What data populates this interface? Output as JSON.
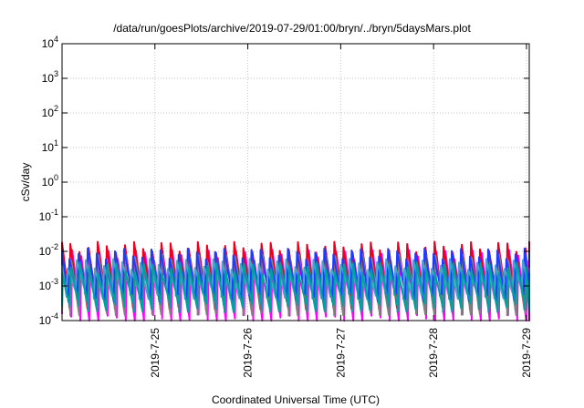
{
  "chart_data": {
    "type": "line",
    "title": "/data/run/goesPlots/archive/2019-07-29/01:00/bryn/../bryn/5daysMars.plot",
    "xlabel": "Coordinated Universal Time (UTC)",
    "ylabel": "cSv/day",
    "yscale": "log",
    "ylim": [
      0.0001,
      10000
    ],
    "xlim": [
      0,
      5.03
    ],
    "grid": true,
    "y_ticks": [
      {
        "base": "10",
        "exp": "-4"
      },
      {
        "base": "10",
        "exp": "-3"
      },
      {
        "base": "10",
        "exp": "-2"
      },
      {
        "base": "10",
        "exp": "-1"
      },
      {
        "base": "10",
        "exp": "0"
      },
      {
        "base": "10",
        "exp": "1"
      },
      {
        "base": "10",
        "exp": "2"
      },
      {
        "base": "10",
        "exp": "3"
      },
      {
        "base": "10",
        "exp": "4"
      }
    ],
    "x_ticks": [
      {
        "label": "2019-7-25",
        "x": 1.0
      },
      {
        "label": "2019-7-26",
        "x": 2.0
      },
      {
        "label": "2019-7-27",
        "x": 3.0
      },
      {
        "label": "2019-7-28",
        "x": 4.0
      },
      {
        "label": "2019-7-29",
        "x": 5.0
      }
    ],
    "sawtooth": {
      "period_days": 0.098,
      "series": [
        {
          "color": "#ff00ff",
          "peak": 0.008,
          "trough": 0.00012,
          "phase": 0.0
        },
        {
          "color": "#e8001c",
          "peak": 0.014,
          "trough": 0.0003,
          "phase": 0.02
        },
        {
          "color": "#808080",
          "peak": 0.006,
          "trough": 0.0002,
          "phase": 0.01
        },
        {
          "color": "#1e3cff",
          "peak": 0.009,
          "trough": 0.0005,
          "phase": 0.03
        },
        {
          "color": "#4aa0d0",
          "peak": 0.0045,
          "trough": 0.0006,
          "phase": 0.05
        },
        {
          "color": "#00a0a0",
          "peak": 0.0035,
          "trough": 0.00025,
          "phase": 0.015
        }
      ]
    }
  }
}
